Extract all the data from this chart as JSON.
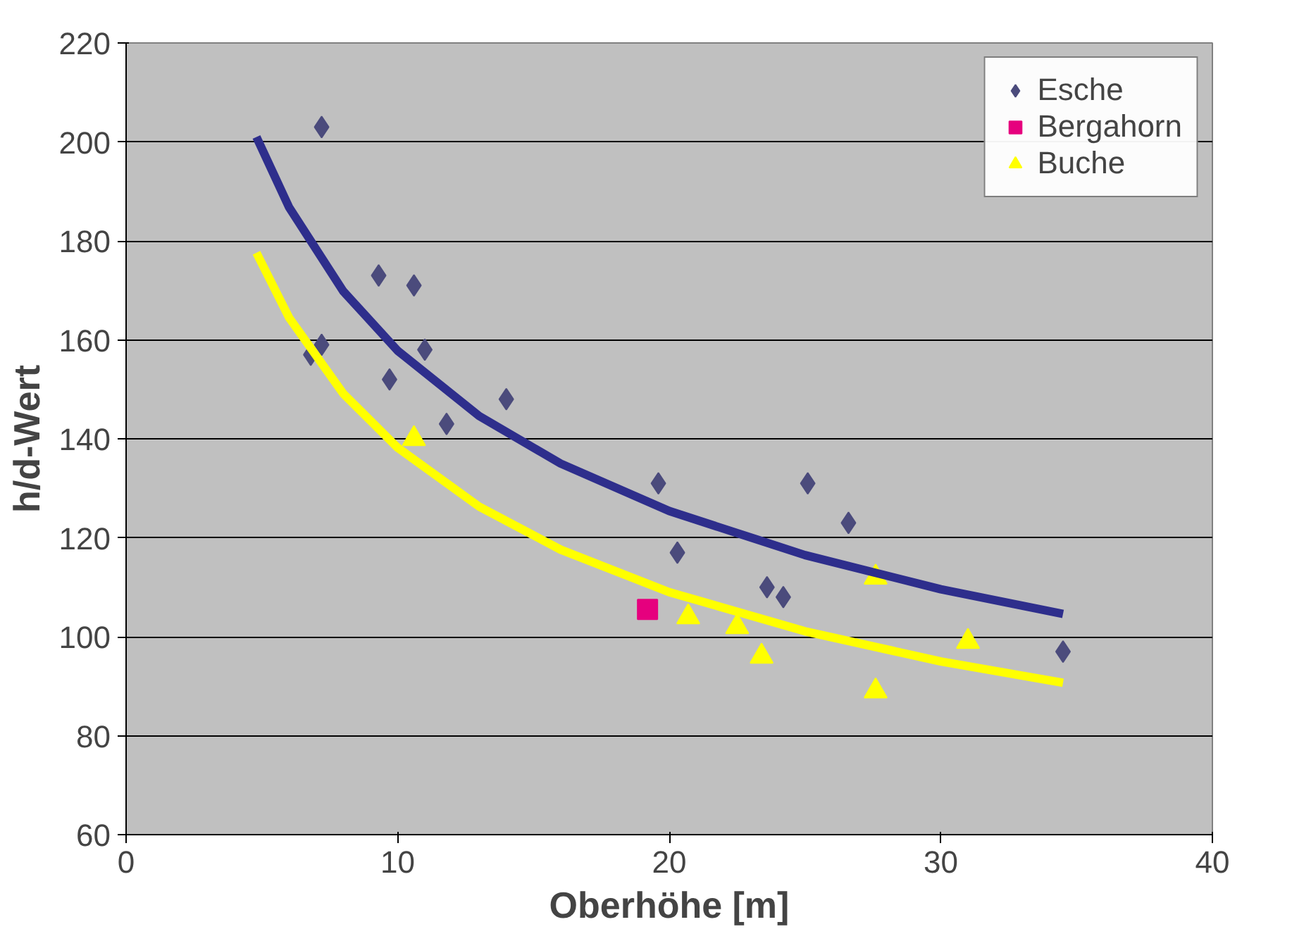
{
  "chart_data": {
    "type": "scatter",
    "xlabel": "Oberhöhe [m]",
    "ylabel": "h/d-Wert",
    "xlim": [
      0,
      40
    ],
    "ylim": [
      60,
      220
    ],
    "xticks": [
      0,
      10,
      20,
      30,
      40
    ],
    "yticks": [
      60,
      80,
      100,
      120,
      140,
      160,
      180,
      200,
      220
    ],
    "grid": "y",
    "legend": "top right",
    "series": [
      {
        "name": "Esche",
        "color": "#4b4b7c",
        "marker": "diamond",
        "x": [
          7.2,
          6.8,
          7.2,
          9.3,
          10.6,
          9.7,
          11.0,
          11.8,
          14.0,
          19.6,
          20.3,
          25.1,
          23.6,
          24.2,
          26.6,
          34.5
        ],
        "values": [
          203,
          157,
          159,
          173,
          171,
          152,
          158,
          143,
          148,
          131,
          117,
          131,
          110,
          108,
          123,
          97
        ]
      },
      {
        "name": "Bergahorn",
        "color": "#e6007e",
        "marker": "square",
        "x": [
          19.2
        ],
        "values": [
          105.5
        ]
      },
      {
        "name": "Buche",
        "color": "#ffff00",
        "marker": "triangle",
        "x": [
          10.6,
          20.7,
          22.5,
          23.4,
          27.6,
          27.6,
          31.0
        ],
        "values": [
          140,
          104,
          102,
          96,
          112,
          89,
          99
        ]
      },
      {
        "type": "line",
        "color": "#2e2e8c",
        "marker": "none",
        "x": [
          4.8,
          6,
          8,
          10,
          13,
          16,
          20,
          25,
          30,
          34.5
        ],
        "values": [
          201,
          186.8,
          169.8,
          157.8,
          144.6,
          135,
          125.4,
          116.5,
          109.6,
          104.6
        ]
      },
      {
        "type": "line",
        "color": "#ffff00",
        "marker": "none",
        "x": [
          4.8,
          6,
          8,
          10,
          13,
          16,
          20,
          25,
          30,
          34.5
        ],
        "values": [
          177.6,
          164.5,
          149.1,
          138.2,
          126.3,
          117.6,
          109,
          101.1,
          95,
          90.7
        ]
      }
    ]
  }
}
